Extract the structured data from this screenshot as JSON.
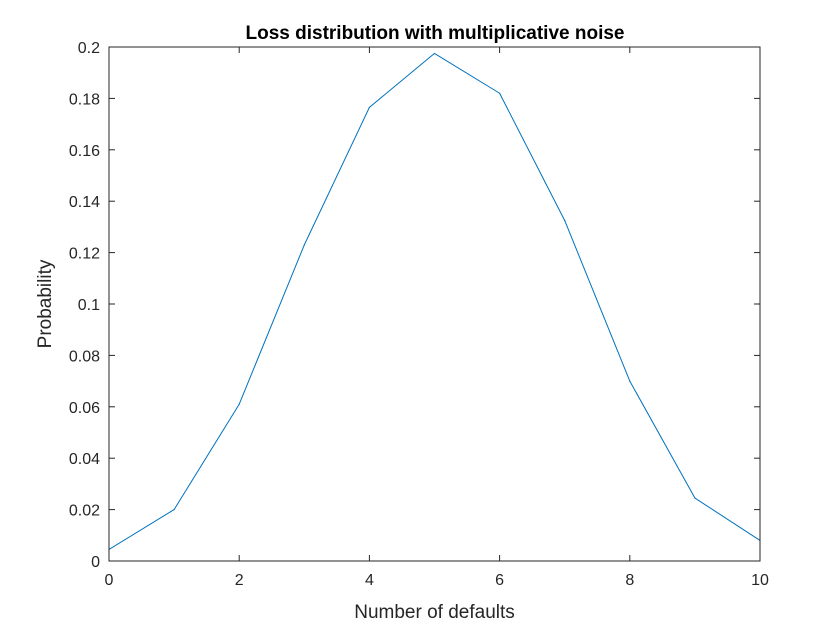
{
  "chart_data": {
    "type": "line",
    "title": "Loss distribution with multiplicative noise",
    "xlabel": "Number of defaults",
    "ylabel": "Probability",
    "xlim": [
      0,
      10
    ],
    "ylim": [
      0,
      0.2
    ],
    "x_ticks": [
      "0",
      "2",
      "4",
      "6",
      "8",
      "10"
    ],
    "y_ticks": [
      "0",
      "0.02",
      "0.04",
      "0.06",
      "0.08",
      "0.1",
      "0.12",
      "0.14",
      "0.16",
      "0.18",
      "0.2"
    ],
    "x": [
      0,
      1,
      2,
      3,
      4,
      5,
      6,
      7,
      8,
      9,
      10
    ],
    "series": [
      {
        "values": [
          0.0045,
          0.02,
          0.061,
          0.123,
          0.1765,
          0.1975,
          0.182,
          0.1325,
          0.07,
          0.0245,
          0.008
        ],
        "color": "#0072BD"
      }
    ],
    "grid": false,
    "legend": "none",
    "box": true
  }
}
